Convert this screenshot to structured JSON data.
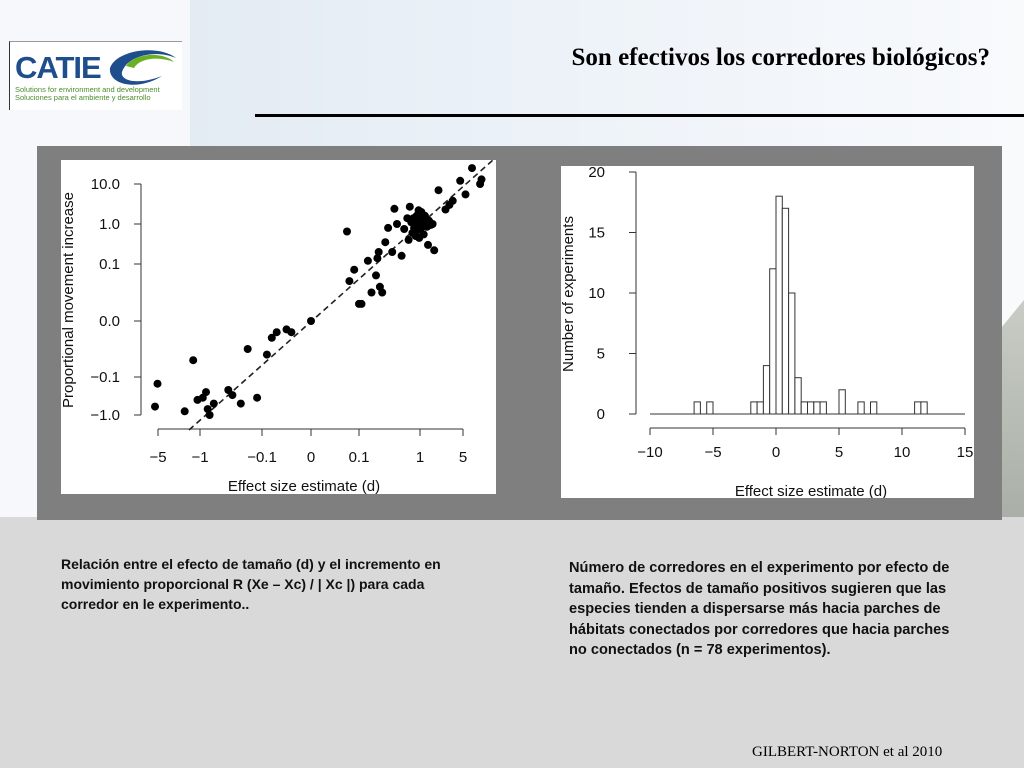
{
  "slide": {
    "title": "Son efectivos los corredores biológicos?",
    "caption_left": "Relación entre el efecto de tamaño (d) y el incremento en movimiento proporcional R (Xe – Xc) / | Xc |) para cada corredor en le experimento..",
    "caption_right": "Número de corredores en el experimento por efecto de tamaño. Efectos de tamaño positivos sugieren que las especies tienden a dispersarse más hacia parches de hábitats conectados por corredores que hacia parches no conectados (n = 78 experimentos).",
    "citation": "GILBERT-NORTON et al 2010"
  },
  "logo": {
    "name": "CATIE",
    "tagline_en": "Solutions for environment and development",
    "tagline_es": "Soluciones para el ambiente y desarrollo",
    "colors": {
      "blue": "#1f4e8c",
      "green": "#6ab023"
    }
  },
  "chart_data": [
    {
      "type": "scatter",
      "xlabel": "Effect size estimate (d)",
      "ylabel": "Proportional movement increase",
      "x_scale": "symmetric-log",
      "y_scale": "symmetric-log",
      "x_ticks": [
        -5,
        -1,
        -0.1,
        0,
        0.1,
        1,
        5
      ],
      "x_tick_labels": [
        "−5",
        "−1",
        "−0.1",
        "0",
        "0.1",
        "1",
        "5"
      ],
      "y_ticks": [
        -1.0,
        -0.1,
        0.0,
        0.1,
        1.0,
        10.0
      ],
      "y_tick_labels": [
        "−1.0",
        "−0.1",
        "0.0",
        "0.1",
        "1.0",
        "10.0"
      ],
      "fit_line": "dashed diagonal y = x",
      "grid": false,
      "points": [
        {
          "x": -5.6,
          "y": -0.6
        },
        {
          "x": -5.1,
          "y": -0.15
        },
        {
          "x": -1.8,
          "y": -0.8
        },
        {
          "x": -1.3,
          "y": -0.07
        },
        {
          "x": -1.1,
          "y": -0.4
        },
        {
          "x": -0.9,
          "y": -0.35
        },
        {
          "x": -0.8,
          "y": -0.25
        },
        {
          "x": -0.75,
          "y": -0.7
        },
        {
          "x": -0.7,
          "y": -1.0
        },
        {
          "x": -0.6,
          "y": -0.5
        },
        {
          "x": -0.35,
          "y": -0.22
        },
        {
          "x": -0.3,
          "y": -0.3
        },
        {
          "x": -0.22,
          "y": -0.5
        },
        {
          "x": -0.17,
          "y": -0.05
        },
        {
          "x": -0.12,
          "y": -0.35
        },
        {
          "x": -0.09,
          "y": -0.06
        },
        {
          "x": -0.08,
          "y": -0.03
        },
        {
          "x": -0.07,
          "y": -0.02
        },
        {
          "x": -0.05,
          "y": -0.015
        },
        {
          "x": -0.04,
          "y": -0.02
        },
        {
          "x": 0.0,
          "y": 0.0
        },
        {
          "x": 0.075,
          "y": 0.65
        },
        {
          "x": 0.08,
          "y": 0.07
        },
        {
          "x": 0.09,
          "y": 0.09
        },
        {
          "x": 0.1,
          "y": 0.03
        },
        {
          "x": 0.11,
          "y": 0.03
        },
        {
          "x": 0.14,
          "y": 0.12
        },
        {
          "x": 0.16,
          "y": 0.05
        },
        {
          "x": 0.19,
          "y": 0.08
        },
        {
          "x": 0.2,
          "y": 0.14
        },
        {
          "x": 0.21,
          "y": 0.2
        },
        {
          "x": 0.22,
          "y": 0.06
        },
        {
          "x": 0.24,
          "y": 0.05
        },
        {
          "x": 0.27,
          "y": 0.35
        },
        {
          "x": 0.3,
          "y": 0.8
        },
        {
          "x": 0.35,
          "y": 0.2
        },
        {
          "x": 0.38,
          "y": 2.4
        },
        {
          "x": 0.42,
          "y": 1.0
        },
        {
          "x": 0.5,
          "y": 0.16
        },
        {
          "x": 0.55,
          "y": 0.75
        },
        {
          "x": 0.62,
          "y": 1.4
        },
        {
          "x": 0.65,
          "y": 0.4
        },
        {
          "x": 0.68,
          "y": 2.7
        },
        {
          "x": 0.72,
          "y": 1.1
        },
        {
          "x": 0.75,
          "y": 0.6
        },
        {
          "x": 0.78,
          "y": 1.4
        },
        {
          "x": 0.8,
          "y": 0.8
        },
        {
          "x": 0.82,
          "y": 1.2
        },
        {
          "x": 0.85,
          "y": 0.5
        },
        {
          "x": 0.88,
          "y": 1.6
        },
        {
          "x": 0.9,
          "y": 1.0
        },
        {
          "x": 0.92,
          "y": 0.7
        },
        {
          "x": 0.95,
          "y": 2.2
        },
        {
          "x": 0.97,
          "y": 0.45
        },
        {
          "x": 1.0,
          "y": 1.3
        },
        {
          "x": 1.02,
          "y": 0.75
        },
        {
          "x": 1.05,
          "y": 2.0
        },
        {
          "x": 1.1,
          "y": 0.9
        },
        {
          "x": 1.15,
          "y": 0.55
        },
        {
          "x": 1.2,
          "y": 1.6
        },
        {
          "x": 1.25,
          "y": 1.1
        },
        {
          "x": 1.3,
          "y": 0.85
        },
        {
          "x": 1.35,
          "y": 0.3
        },
        {
          "x": 1.4,
          "y": 1.2
        },
        {
          "x": 1.5,
          "y": 0.95
        },
        {
          "x": 1.6,
          "y": 1.0
        },
        {
          "x": 1.7,
          "y": 0.22
        },
        {
          "x": 2.0,
          "y": 7.0
        },
        {
          "x": 2.6,
          "y": 2.3
        },
        {
          "x": 3.0,
          "y": 3.0
        },
        {
          "x": 3.4,
          "y": 3.8
        },
        {
          "x": 4.5,
          "y": 12.0
        },
        {
          "x": 5.5,
          "y": 5.5
        },
        {
          "x": 7.0,
          "y": 25.0
        },
        {
          "x": 9.5,
          "y": 10.0
        },
        {
          "x": 10.0,
          "y": 13.0
        }
      ]
    },
    {
      "type": "bar",
      "subtype": "histogram",
      "xlabel": "Effect size estimate (d)",
      "ylabel": "Number of experiments",
      "xlim": [
        -10,
        15
      ],
      "ylim": [
        0,
        20
      ],
      "x_ticks": [
        -10,
        -5,
        0,
        5,
        10,
        15
      ],
      "x_tick_labels": [
        "−10",
        "−5",
        "0",
        "5",
        "10",
        "15"
      ],
      "y_ticks": [
        0,
        5,
        10,
        15,
        20
      ],
      "bin_width": 0.5,
      "grid": false,
      "bins": [
        {
          "start": -6.5,
          "count": 1
        },
        {
          "start": -5.5,
          "count": 1
        },
        {
          "start": -2.0,
          "count": 1
        },
        {
          "start": -1.5,
          "count": 1
        },
        {
          "start": -1.0,
          "count": 4
        },
        {
          "start": -0.5,
          "count": 12
        },
        {
          "start": 0.0,
          "count": 18
        },
        {
          "start": 0.5,
          "count": 17
        },
        {
          "start": 1.0,
          "count": 10
        },
        {
          "start": 1.5,
          "count": 3
        },
        {
          "start": 2.0,
          "count": 1
        },
        {
          "start": 2.5,
          "count": 1
        },
        {
          "start": 3.0,
          "count": 1
        },
        {
          "start": 3.5,
          "count": 1
        },
        {
          "start": 5.0,
          "count": 2
        },
        {
          "start": 6.5,
          "count": 1
        },
        {
          "start": 7.5,
          "count": 1
        },
        {
          "start": 11.0,
          "count": 1
        },
        {
          "start": 11.5,
          "count": 1
        }
      ]
    }
  ]
}
